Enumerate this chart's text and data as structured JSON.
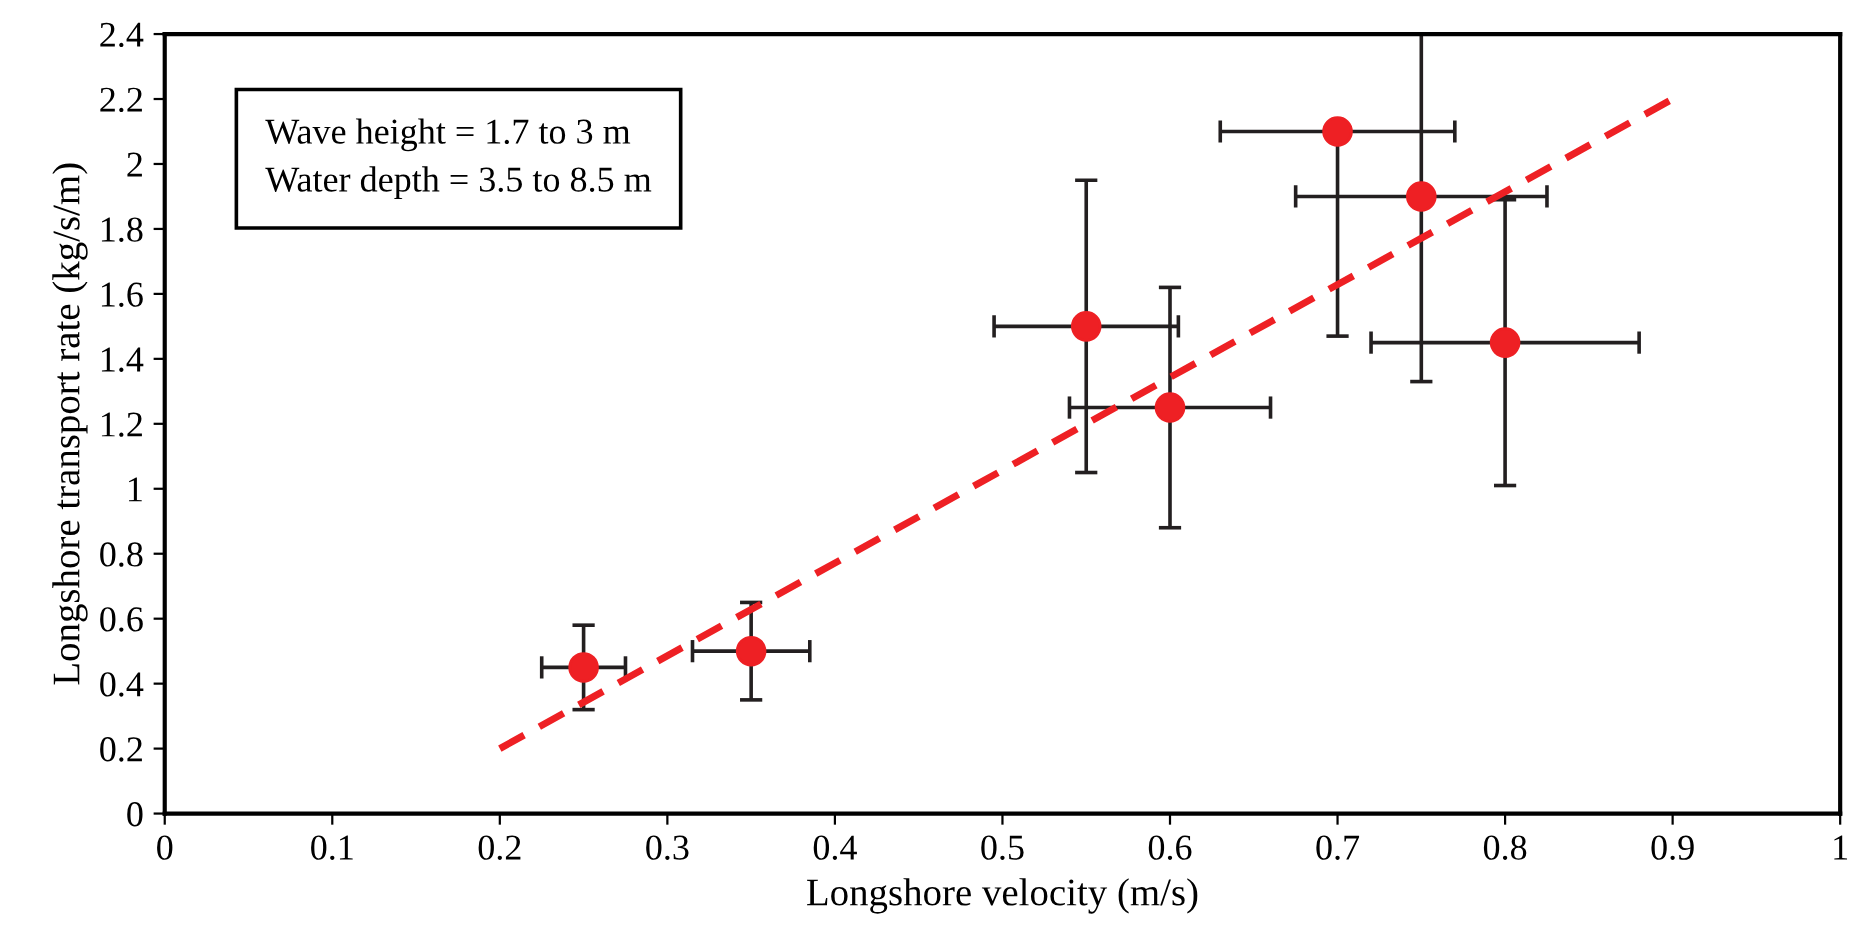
{
  "chart_data": {
    "type": "scatter",
    "xlabel": "Longshore velocity (m/s)",
    "ylabel": "Longshore transport rate (kg/s/m)",
    "annotations": [
      "Wave height = 1.7 to 3 m\nWater depth = 3.5 to 8.5 m"
    ],
    "xlim": [
      0,
      1
    ],
    "xticks": [
      0,
      0.1,
      0.2,
      0.3,
      0.4,
      0.5,
      0.6,
      0.7,
      0.8,
      0.9,
      1
    ],
    "ylim": [
      0,
      2.4
    ],
    "yticks": [
      0,
      0.2,
      0.4,
      0.6,
      0.8,
      1,
      1.2,
      1.4,
      1.6,
      1.8,
      2,
      2.2,
      2.4
    ],
    "grid": false,
    "legend": false,
    "series": [
      {
        "color": "#ee2024",
        "marker": "circle",
        "x": [
          0.25,
          0.35,
          0.55,
          0.6,
          0.7,
          0.75,
          0.8
        ],
        "values": [
          0.45,
          0.5,
          1.5,
          1.25,
          2.1,
          1.9,
          1.45
        ],
        "errors": [
          0.13,
          0.15,
          0.45,
          0.37,
          [
            1.47,
            2.1
          ],
          [
            1.33,
            2.4
          ],
          0.44
        ],
        "xerrors": [
          0.025,
          0.035,
          0.055,
          0.06,
          0.07,
          0.075,
          0.08
        ]
      },
      {
        "type": "line",
        "color": "#ee2024",
        "line_style": "dashed",
        "marker": "none",
        "x": [
          0.2,
          0.9
        ],
        "values": [
          0.2,
          2.2
        ]
      }
    ]
  }
}
